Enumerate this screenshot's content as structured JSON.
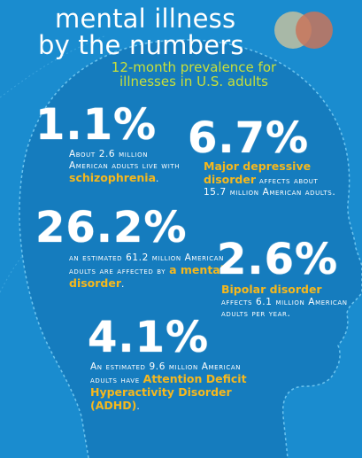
{
  "header": {
    "title_line1": "mental illness",
    "title_line2": "by the numbers",
    "subtitle": "12-month prevalence for illnesses in U.S. adults"
  },
  "colors": {
    "background": "#1a8ccf",
    "head": "#157cbe",
    "accent_yellow": "#f6b81d",
    "accent_green": "#c8df3a"
  },
  "stats": [
    {
      "value": "1.1%",
      "pre": "About 2.6 million American adults live with ",
      "highlight": "schizophrenia",
      "post": "."
    },
    {
      "value": "6.7%",
      "pre": "",
      "highlight": "Major depressive disorder",
      "post": " affects about 15.7 million American adults."
    },
    {
      "value": "26.2%",
      "pre": "an estimated 61.2 million American adults are affected by ",
      "highlight": "a mental disorder",
      "post": "."
    },
    {
      "value": "2.6%",
      "pre": "",
      "highlight": "Bipolar disorder",
      "post": " affects 6.1 million American adults per year."
    },
    {
      "value": "4.1%",
      "pre": "An estimated 9.6 million American adults have ",
      "highlight": "Attention Deficit Hyperactivity Disorder (ADHD)",
      "post": "."
    }
  ]
}
